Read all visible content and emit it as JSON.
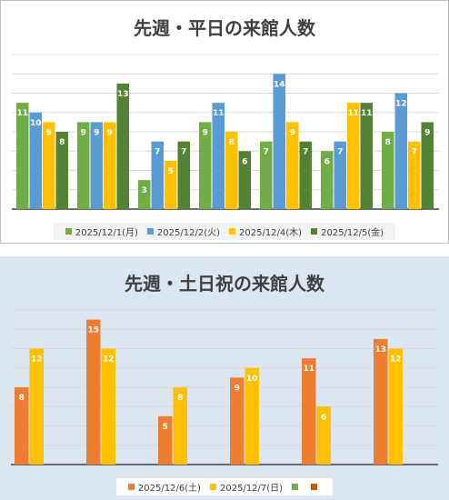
{
  "colors": {
    "green_light": "#70ad47",
    "blue": "#5b9bd5",
    "yellow": "#ffc000",
    "green_dark": "#548235",
    "orange": "#ed7d31",
    "grid": "#d9d9d9",
    "axis": "#404040",
    "label_text": "#ffffff"
  },
  "chart_data": [
    {
      "type": "bar",
      "title": "先週・平日の来館人数",
      "categories": [
        "",
        "",
        "",
        "",
        "",
        "",
        ""
      ],
      "ylim": [
        0,
        16
      ],
      "grid": true,
      "legend": "bottom",
      "series": [
        {
          "name": "2025/12/1(月)",
          "color": "#70ad47",
          "values": [
            11,
            9,
            3,
            9,
            7,
            6,
            8
          ]
        },
        {
          "name": "2025/12/2(火)",
          "color": "#5b9bd5",
          "values": [
            10,
            9,
            7,
            11,
            14,
            7,
            12
          ]
        },
        {
          "name": "2025/12/4(木)",
          "color": "#ffc000",
          "values": [
            9,
            9,
            5,
            8,
            9,
            11,
            7
          ]
        },
        {
          "name": "2025/12/5(金)",
          "color": "#548235",
          "values": [
            8,
            13,
            7,
            6,
            7,
            11,
            9
          ]
        }
      ]
    },
    {
      "type": "bar",
      "title": "先週・土日祝の来館人数",
      "categories": [
        "",
        "",
        "",
        "",
        "",
        ""
      ],
      "ylim": [
        0,
        16
      ],
      "grid": true,
      "legend": "bottom",
      "series": [
        {
          "name": "2025/12/6(土)",
          "color": "#ed7d31",
          "values": [
            8,
            15,
            5,
            9,
            11,
            13
          ]
        },
        {
          "name": "2025/12/7(日)",
          "color": "#ffc000",
          "values": [
            12,
            12,
            8,
            10,
            6,
            12
          ]
        }
      ],
      "extra_legend": [
        {
          "name": "",
          "color": "#70ad47"
        },
        {
          "name": "",
          "color": "#c55a11"
        }
      ]
    }
  ]
}
